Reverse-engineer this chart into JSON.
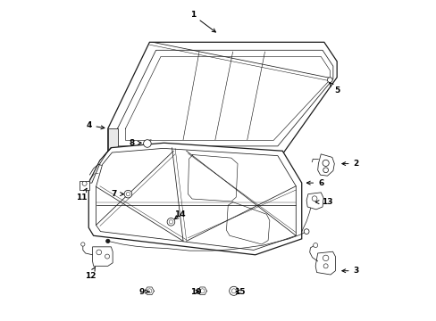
{
  "background_color": "#ffffff",
  "line_color": "#1a1a1a",
  "figure_width": 4.89,
  "figure_height": 3.6,
  "dpi": 100,
  "label_positions": {
    "1": [
      0.42,
      0.955,
      0.5,
      0.895
    ],
    "2": [
      0.93,
      0.49,
      0.875,
      0.49
    ],
    "3": [
      0.93,
      0.155,
      0.875,
      0.155
    ],
    "4": [
      0.095,
      0.61,
      0.155,
      0.6
    ],
    "5": [
      0.87,
      0.72,
      0.845,
      0.745
    ],
    "6": [
      0.82,
      0.43,
      0.765,
      0.43
    ],
    "7": [
      0.175,
      0.395,
      0.215,
      0.395
    ],
    "8": [
      0.23,
      0.555,
      0.27,
      0.555
    ],
    "9": [
      0.26,
      0.09,
      0.285,
      0.09
    ],
    "10": [
      0.43,
      0.09,
      0.45,
      0.09
    ],
    "11": [
      0.072,
      0.385,
      0.09,
      0.415
    ],
    "12": [
      0.1,
      0.14,
      0.12,
      0.175
    ],
    "13": [
      0.84,
      0.37,
      0.8,
      0.37
    ],
    "14": [
      0.38,
      0.33,
      0.355,
      0.31
    ],
    "15": [
      0.565,
      0.09,
      0.545,
      0.09
    ]
  }
}
